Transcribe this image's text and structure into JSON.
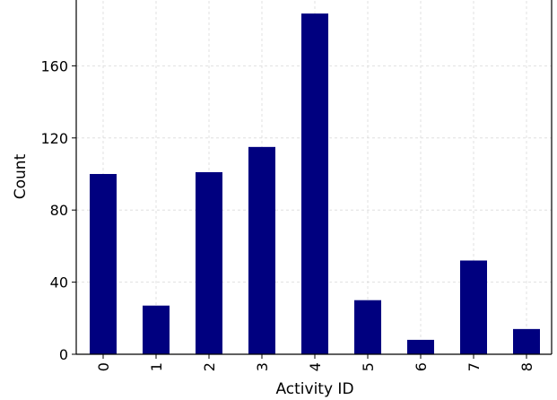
{
  "chart_data": {
    "type": "bar",
    "title": "",
    "xlabel": "Activity ID",
    "ylabel": "Count",
    "categories": [
      "0",
      "1",
      "2",
      "3",
      "4",
      "5",
      "6",
      "7",
      "8"
    ],
    "values": [
      100,
      27,
      101,
      115,
      189,
      30,
      8,
      52,
      14
    ],
    "ylim": [
      0,
      199
    ],
    "yticks": [
      0,
      40,
      80,
      120,
      160
    ],
    "grid": true,
    "legend": "none",
    "colors": {
      "bar": "#00007f",
      "grid": "#d9d9d9",
      "axis": "#000000"
    }
  }
}
